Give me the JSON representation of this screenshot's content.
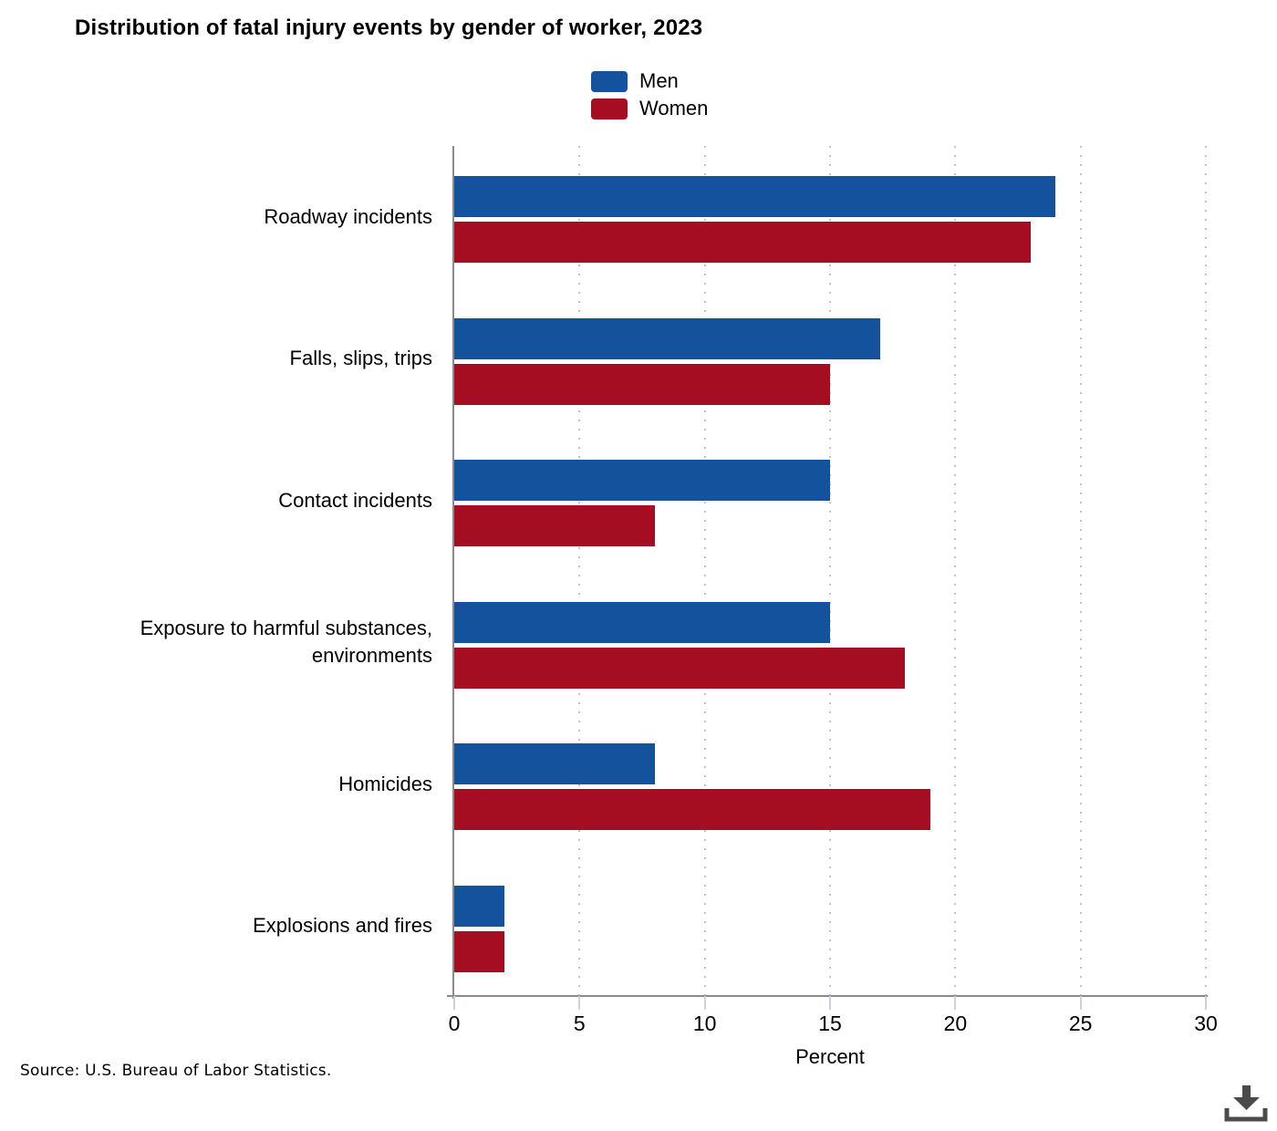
{
  "title": "Distribution of fatal injury events by gender of worker, 2023",
  "source": "Source: U.S. Bureau of Labor Statistics.",
  "icons": {
    "download": "download-arrow-into-tray"
  },
  "legend": {
    "position": "top-center",
    "items": [
      {
        "label": "Men",
        "color": "#15529D"
      },
      {
        "label": "Women",
        "color": "#A50D22"
      }
    ]
  },
  "chart_data": {
    "type": "bar",
    "orientation": "horizontal",
    "title": "Distribution of fatal injury events by gender of worker, 2023",
    "categories": [
      "Roadway incidents",
      "Falls, slips, trips",
      "Contact incidents",
      "Exposure to harmful substances, environments",
      "Homicides",
      "Explosions and fires"
    ],
    "series": [
      {
        "name": "Men",
        "color": "#15529D",
        "values": [
          24,
          17,
          15,
          15,
          8,
          2
        ]
      },
      {
        "name": "Women",
        "color": "#A50D22",
        "values": [
          23,
          15,
          8,
          18,
          19,
          2
        ]
      }
    ],
    "xlabel": "Percent",
    "ylabel": "",
    "xlim": [
      0,
      30
    ],
    "xticks": [
      0,
      5,
      10,
      15,
      20,
      25,
      30
    ],
    "grid": "vertical-dotted",
    "colors": {
      "axis_line": "#8a8a8a",
      "gridline": "#c3c3c3",
      "tick_mark": "#ccd2dd"
    }
  }
}
